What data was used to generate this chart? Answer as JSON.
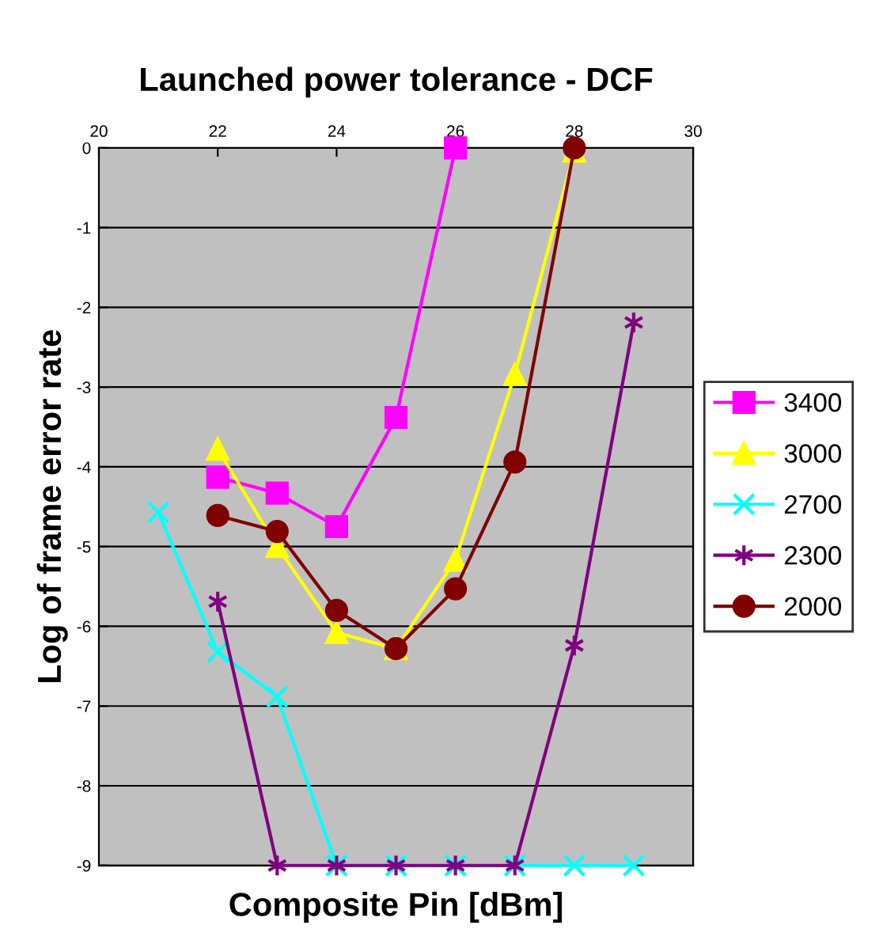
{
  "chart_data": {
    "type": "line",
    "title": "Launched power tolerance - DCF",
    "xlabel": "Composite Pin [dBm]",
    "ylabel": "Log of frame error rate",
    "xlim": [
      20,
      30
    ],
    "xticks": [
      20,
      22,
      24,
      26,
      28,
      30
    ],
    "ylim": [
      -9,
      0
    ],
    "yticks": [
      -9,
      -8,
      -7,
      -6,
      -5,
      -4,
      -3,
      -2,
      -1,
      0
    ],
    "grid": "y",
    "legend": "right",
    "series": [
      {
        "name": "3400",
        "color": "#ff00ff",
        "marker": "square",
        "x": [
          22,
          23,
          24,
          25,
          26
        ],
        "values": [
          -4.13,
          -4.33,
          -4.75,
          -3.38,
          0
        ]
      },
      {
        "name": "3000",
        "color": "#ffff00",
        "marker": "triangle",
        "x": [
          22,
          23,
          24,
          25,
          26,
          27,
          28
        ],
        "values": [
          -3.78,
          -5.0,
          -6.08,
          -6.28,
          -5.17,
          -2.84,
          -0.04
        ]
      },
      {
        "name": "2700",
        "color": "#00ffff",
        "marker": "cross",
        "x": [
          21,
          22,
          23,
          24,
          25,
          26,
          27,
          28,
          29
        ],
        "values": [
          -4.57,
          -6.32,
          -6.88,
          -9,
          -9,
          -9,
          -9,
          -9,
          -9
        ]
      },
      {
        "name": "2300",
        "color": "#800080",
        "marker": "cross",
        "x": [
          22,
          23,
          24,
          25,
          26,
          27,
          28,
          29
        ],
        "values": [
          -5.69,
          -9,
          -9,
          -9,
          -9,
          -9,
          -6.24,
          -2.19
        ]
      },
      {
        "name": "2000",
        "color": "#800000",
        "marker": "circle",
        "x": [
          22,
          23,
          24,
          25,
          26,
          27,
          28
        ],
        "values": [
          -4.61,
          -4.81,
          -5.8,
          -6.28,
          -5.53,
          -3.94,
          0
        ]
      }
    ]
  }
}
